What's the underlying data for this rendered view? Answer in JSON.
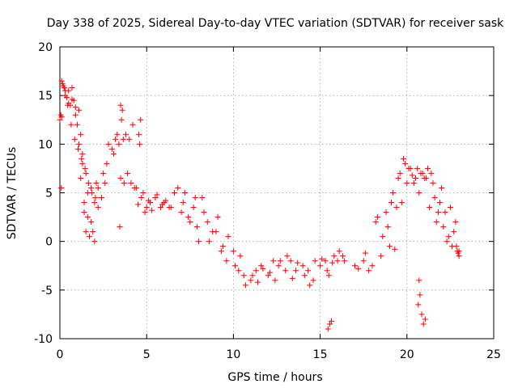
{
  "chart_data": {
    "type": "scatter",
    "title": "Day 338 of 2025, Sidereal Day-to-day VTEC variation (SDTVAR) for receiver sask",
    "xlabel": "GPS time / hours",
    "ylabel": "SDTVAR / TECUs",
    "xlim": [
      0,
      25
    ],
    "ylim": [
      -10,
      20
    ],
    "xticks": [
      0,
      5,
      10,
      15,
      20,
      25
    ],
    "yticks": [
      -10,
      -5,
      0,
      5,
      10,
      15,
      20
    ],
    "xtick_labels": [
      "0",
      "5",
      "10",
      "15",
      "20",
      "25"
    ],
    "ytick_labels": [
      "-10",
      "-5",
      "0",
      "5",
      "10",
      "15",
      "20"
    ],
    "grid": true,
    "marker": "+",
    "color": "#ff0000",
    "series": [
      {
        "name": "sask",
        "x": [
          0.0,
          0.1,
          0.2,
          0.3,
          0.4,
          0.5,
          0.6,
          0.7,
          0.8,
          0.9,
          1.0,
          1.1,
          1.2,
          1.3,
          1.4,
          1.5,
          1.6,
          1.7,
          1.8,
          1.9,
          2.0,
          2.1,
          2.2,
          2.4,
          2.6,
          2.8,
          3.0,
          3.2,
          3.4,
          3.5,
          3.6,
          3.8,
          4.0,
          4.2,
          4.4,
          4.6,
          4.8,
          5.0,
          5.2,
          5.5,
          5.8,
          6.0,
          6.3,
          6.6,
          7.0,
          7.2,
          7.5,
          7.8,
          8.0,
          8.3,
          8.6,
          9.0,
          9.3,
          9.6,
          10.0,
          10.3,
          10.6,
          11.0,
          11.3,
          11.6,
          12.0,
          12.3,
          12.6,
          13.0,
          13.3,
          13.6,
          14.0,
          14.3,
          14.6,
          15.0,
          15.3,
          15.5,
          15.8,
          16.0,
          16.3,
          17.0,
          17.5,
          17.8,
          18.2,
          18.5,
          18.8,
          19.0,
          19.2,
          19.4,
          19.6,
          19.8,
          20.0,
          20.2,
          20.4,
          20.6,
          20.8,
          21.0,
          21.2,
          21.4,
          21.6,
          21.8,
          22.0,
          22.2,
          22.4,
          22.6,
          22.8,
          23.0,
          0.05,
          0.15,
          0.1,
          0.3,
          0.5,
          0.7,
          0.9,
          1.1,
          1.3,
          1.5,
          1.2,
          1.4,
          1.6,
          1.8,
          2.0,
          2.2,
          2.5,
          2.7,
          3.1,
          3.3,
          3.5,
          3.7,
          3.9,
          4.1,
          4.3,
          4.5,
          4.7,
          4.9,
          5.1,
          5.3,
          5.6,
          5.9,
          6.1,
          6.4,
          6.8,
          7.1,
          7.4,
          7.7,
          7.9,
          8.2,
          8.5,
          8.8,
          9.1,
          9.4,
          9.7,
          10.1,
          10.4,
          10.7,
          11.1,
          11.4,
          11.7,
          12.1,
          12.4,
          12.7,
          13.1,
          13.4,
          13.7,
          14.1,
          14.4,
          14.7,
          15.1,
          15.4,
          15.7,
          16.1,
          16.4,
          17.2,
          17.6,
          18.0,
          18.3,
          18.6,
          18.9,
          19.1,
          19.3,
          19.5,
          19.7,
          19.9,
          20.1,
          20.3,
          20.5,
          20.7,
          20.9,
          21.1,
          21.3,
          21.5,
          21.7,
          21.9,
          22.1,
          22.3,
          22.5,
          22.7,
          22.9,
          0.08,
          0.25,
          0.45,
          0.65,
          0.85,
          1.05,
          1.25,
          1.45,
          1.65,
          1.85,
          2.05,
          3.45,
          3.55,
          3.65,
          4.55,
          4.65,
          15.45,
          15.55,
          15.65,
          20.85,
          20.95,
          21.05,
          20.7,
          20.75,
          20.65,
          22.85,
          22.95,
          23.0
        ],
        "y": [
          12.5,
          16.5,
          16.0,
          15.5,
          14.8,
          15.5,
          14.0,
          15.8,
          14.5,
          13.0,
          12.0,
          13.5,
          11.0,
          9.0,
          3.0,
          1.0,
          5.0,
          0.5,
          2.0,
          1.0,
          0.0,
          6.0,
          5.5,
          4.5,
          6.0,
          10.0,
          9.5,
          10.5,
          10.0,
          14.0,
          13.5,
          11.0,
          10.5,
          12.0,
          5.5,
          10.0,
          5.0,
          3.5,
          4.0,
          4.5,
          3.5,
          4.0,
          3.5,
          5.0,
          3.0,
          5.0,
          2.0,
          4.5,
          0.0,
          3.0,
          0.0,
          1.0,
          -1.0,
          -2.0,
          -1.0,
          -3.0,
          -3.5,
          -4.0,
          -3.0,
          -2.5,
          -3.5,
          -2.0,
          -2.5,
          -3.0,
          -2.0,
          -3.0,
          -2.5,
          -3.0,
          -4.0,
          -2.5,
          -2.0,
          -3.5,
          -1.5,
          -2.0,
          -1.5,
          -2.5,
          -2.0,
          -3.0,
          2.0,
          -1.5,
          3.0,
          -0.5,
          5.0,
          3.5,
          7.0,
          8.5,
          6.0,
          7.5,
          6.0,
          7.5,
          7.0,
          6.5,
          7.5,
          7.0,
          4.5,
          3.0,
          5.5,
          3.0,
          0.5,
          -0.5,
          2.0,
          -1.5,
          13.0,
          16.2,
          12.8,
          15.0,
          14.2,
          14.6,
          13.8,
          10.0,
          8.0,
          7.0,
          6.5,
          4.0,
          2.5,
          5.5,
          4.0,
          3.5,
          7.0,
          8.0,
          9.0,
          11.0,
          6.5,
          6.0,
          7.0,
          6.0,
          5.5,
          3.8,
          4.5,
          3.0,
          4.2,
          3.2,
          4.8,
          3.8,
          4.2,
          3.5,
          5.5,
          4.0,
          2.5,
          3.5,
          1.5,
          4.5,
          2.0,
          1.0,
          2.5,
          -0.5,
          0.5,
          -2.5,
          -1.5,
          -4.5,
          -3.5,
          -4.2,
          -2.8,
          -3.2,
          -4.0,
          -2.0,
          -1.5,
          -3.8,
          -2.2,
          -3.5,
          -4.5,
          -2.0,
          -1.8,
          -3.0,
          -2.2,
          -1.0,
          -2.0,
          -2.8,
          -1.2,
          -2.5,
          2.5,
          0.5,
          1.5,
          4.0,
          -0.8,
          6.5,
          4.0,
          8.0,
          7.5,
          6.8,
          6.5,
          5.0,
          7.0,
          6.5,
          3.5,
          6.0,
          2.0,
          4.0,
          1.5,
          0.0,
          3.5,
          1.0,
          -1.0,
          5.5,
          15.8,
          14.0,
          12.0,
          10.5,
          9.5,
          8.5,
          7.5,
          6.0,
          5.0,
          4.5,
          1.5,
          12.5,
          10.5,
          11.0,
          12.5,
          -9.0,
          -8.5,
          -8.2,
          -7.5,
          -8.5,
          -8.0,
          -4.0,
          -5.5,
          -6.5,
          -0.5,
          -1.2,
          -1.0
        ]
      }
    ]
  }
}
